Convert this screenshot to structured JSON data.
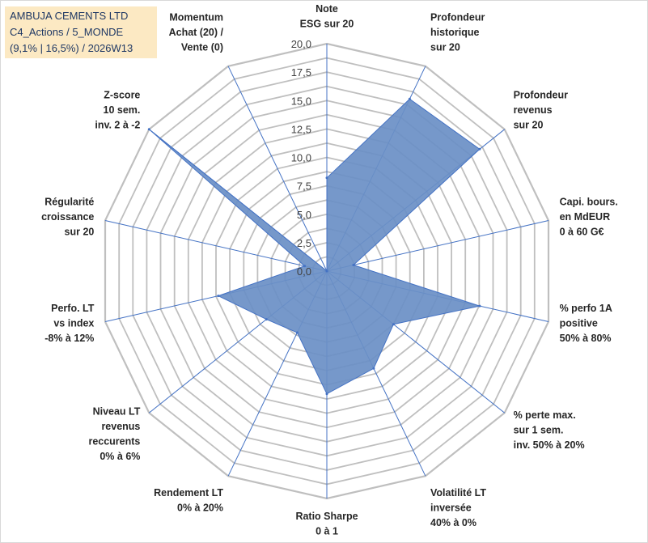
{
  "title_lines": [
    "AMBUJA CEMENTS LTD",
    "C4_Actions / 5_MONDE",
    "(9,1% | 16,5%) / 2026W13"
  ],
  "chart_data": {
    "type": "radar",
    "rmin": 0,
    "rmax": 20,
    "grid": true,
    "fill_color": "#6a8fc5",
    "stroke_color": "#4472c4",
    "grid_color": "#bfbfbf",
    "spoke_color": "#4472c4",
    "ticks": [
      "0,0",
      "2,5",
      "5,0",
      "7,5",
      "10,0",
      "12,5",
      "15,0",
      "17,5",
      "20,0"
    ],
    "tick_values": [
      0,
      2.5,
      5,
      7.5,
      10,
      12.5,
      15,
      17.5,
      20
    ],
    "categories": [
      [
        "Note",
        "ESG sur 20"
      ],
      [
        "Profondeur",
        "historique",
        "sur 20"
      ],
      [
        "Profondeur",
        "revenus",
        "sur 20"
      ],
      [
        "Capi. bours.",
        "en MdEUR",
        "0 à 60 G€"
      ],
      [
        "% perfo 1A",
        "positive",
        "50% à 80%"
      ],
      [
        "% perte max.",
        "sur 1 sem.",
        "inv. 50% à 20%"
      ],
      [
        "Volatilité LT",
        "inversée",
        "40% à 0%"
      ],
      [
        "Ratio Sharpe",
        "0 à 1"
      ],
      [
        "Rendement LT",
        "0% à 20%"
      ],
      [
        "Niveau LT",
        "revenus",
        "reccurents",
        "0% à 6%"
      ],
      [
        "Perfo. LT",
        "vs index",
        "-8% à 12%"
      ],
      [
        "Régularité",
        "croissance",
        "sur 20"
      ],
      [
        "Z-score",
        "10 sem.",
        "inv. 2 à -2"
      ],
      [
        "Momentum",
        "Achat (20) /",
        "Vente (0)"
      ]
    ],
    "values": [
      8.2,
      16.8,
      17.2,
      2.4,
      13.8,
      7.5,
      9.5,
      10.8,
      6.0,
      6.8,
      9.8,
      2.0,
      20.0,
      0.0
    ]
  }
}
